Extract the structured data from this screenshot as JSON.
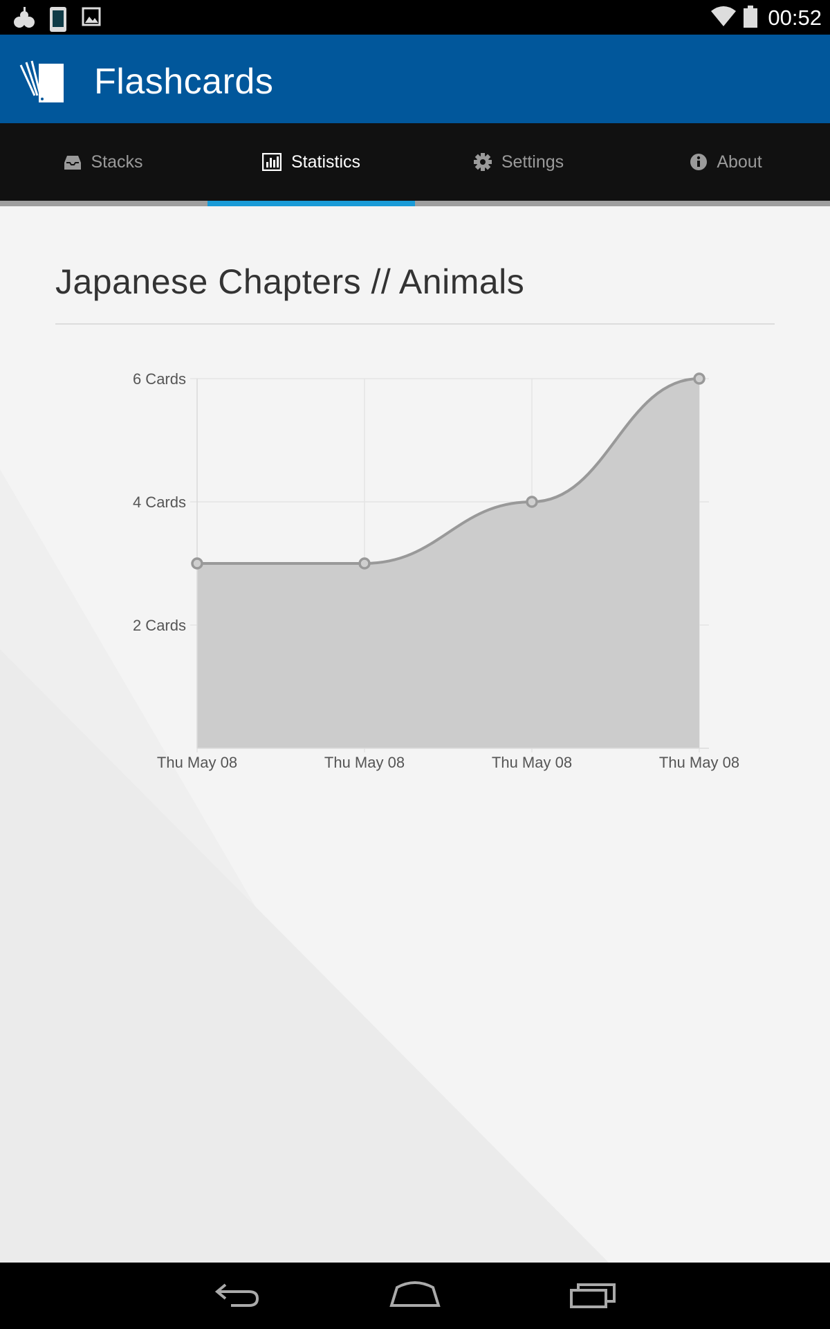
{
  "status_bar": {
    "time": "00:52",
    "icons": [
      "notification-app-icon",
      "notification-phone-icon",
      "notification-image-icon",
      "wifi-icon",
      "battery-icon"
    ]
  },
  "app_bar": {
    "title": "Flashcards",
    "logo_icon": "flashcards-logo-icon",
    "background_color": "#01579b"
  },
  "tabs": [
    {
      "label": "Stacks",
      "icon": "inbox-icon",
      "active": false
    },
    {
      "label": "Statistics",
      "icon": "bar-chart-icon",
      "active": true
    },
    {
      "label": "Settings",
      "icon": "gear-icon",
      "active": false
    },
    {
      "label": "About",
      "icon": "info-icon",
      "active": false
    }
  ],
  "tab_accent_color": "#1a9bd7",
  "page": {
    "title": "Japanese Chapters // Animals"
  },
  "chart_data": {
    "type": "area",
    "title": "",
    "xlabel": "",
    "ylabel": "",
    "categories": [
      "Thu May 08",
      "Thu May 08",
      "Thu May 08",
      "Thu May 08"
    ],
    "series": [
      {
        "values": [
          3,
          3,
          4,
          6
        ]
      }
    ],
    "yticks": [
      {
        "value": 2,
        "label": "2 Cards"
      },
      {
        "value": 4,
        "label": "4 Cards"
      },
      {
        "value": 6,
        "label": "6 Cards"
      }
    ],
    "ylim": [
      0,
      6
    ],
    "grid": true,
    "line_color": "#999999",
    "fill_color": "#cccccc"
  },
  "nav_bar": {
    "icons": [
      "back-icon",
      "home-icon",
      "recents-icon"
    ]
  }
}
